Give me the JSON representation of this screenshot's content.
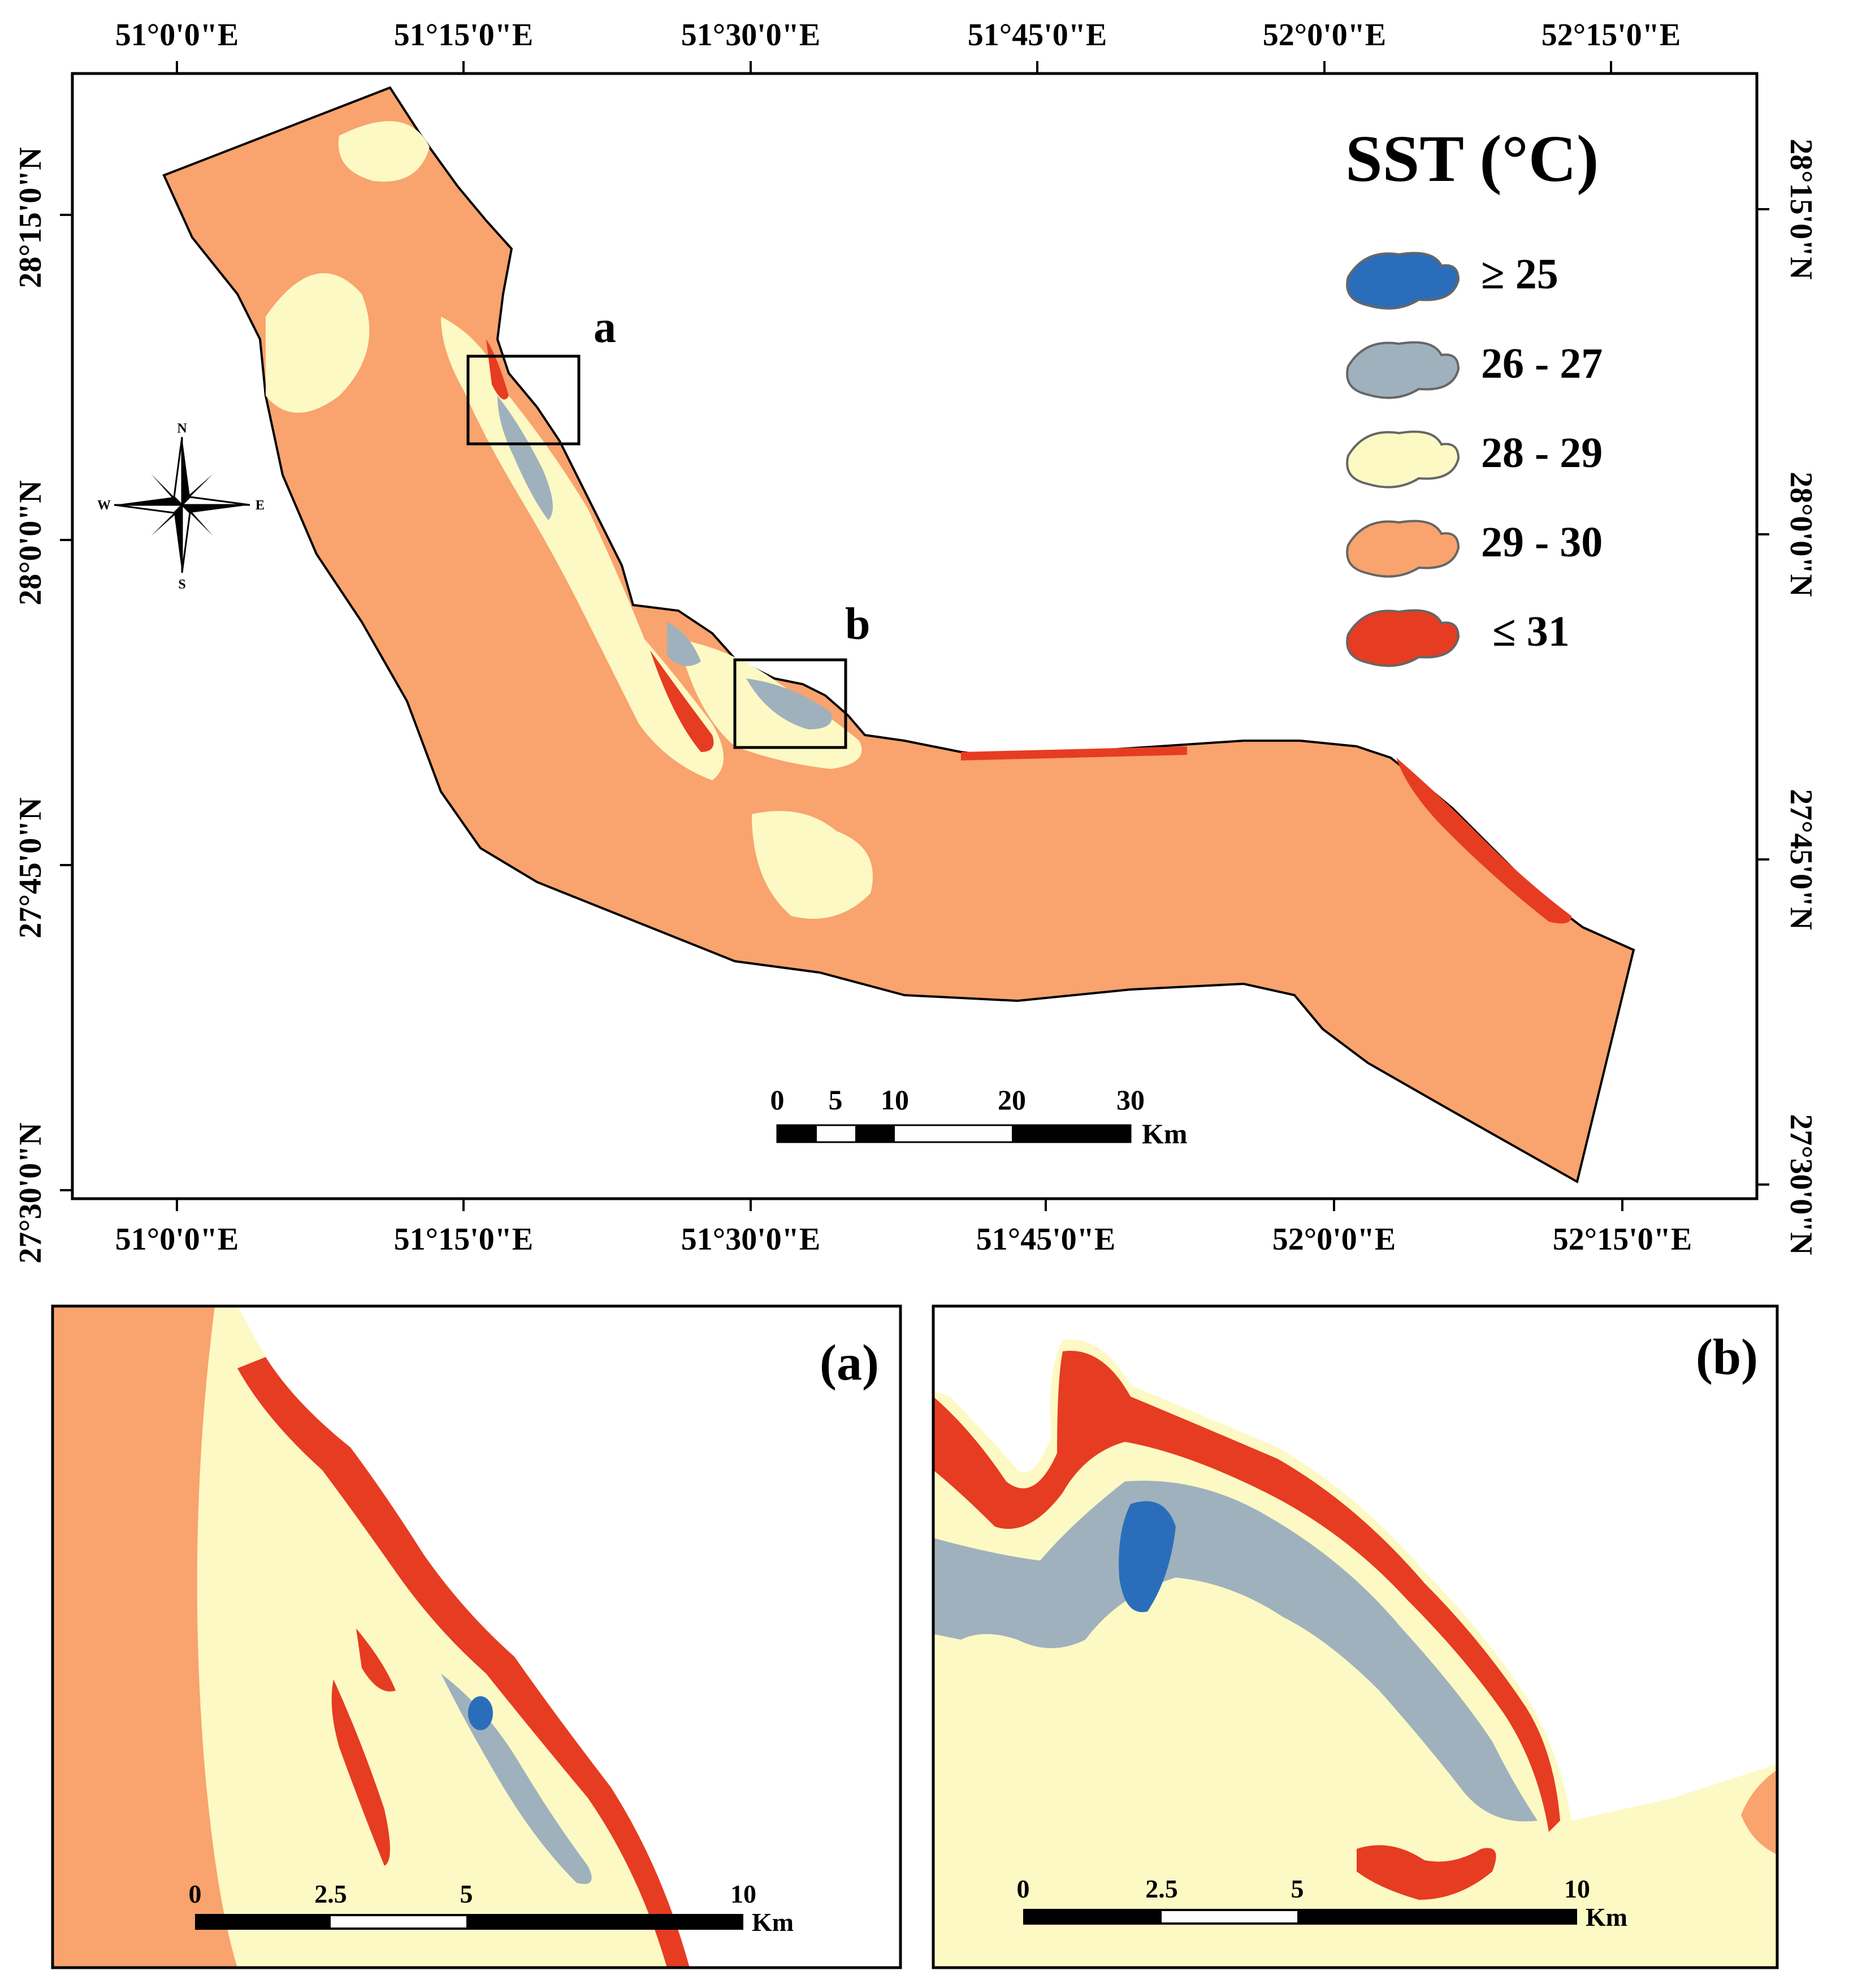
{
  "main_map": {
    "top_lon_labels": [
      "51°0'0\"E",
      "51°15'0\"E",
      "51°30'0\"E",
      "51°45'0\"E",
      "52°0'0\"E",
      "52°15'0\"E"
    ],
    "bottom_lon_labels": [
      "51°0'0\"E",
      "51°15'0\"E",
      "51°30'0\"E",
      "51°45'0\"E",
      "52°0'0\"E",
      "52°15'0\"E"
    ],
    "left_lat_labels": [
      "28°15'0\"N",
      "28°0'0\"N",
      "27°45'0\"N",
      "27°30'0\"N"
    ],
    "right_lat_labels": [
      "28°15'0\"N",
      "28°0'0\"N",
      "27°45'0\"N",
      "27°30'0\"N"
    ],
    "inset_markers": [
      "a",
      "b"
    ],
    "scale_bar": {
      "ticks": [
        "0",
        "5",
        "10",
        "20",
        "30"
      ],
      "unit": "Km"
    },
    "north_arrow": {
      "n": "N",
      "s": "S",
      "e": "E",
      "w": "W"
    }
  },
  "legend": {
    "title": "SST (°C)",
    "items": [
      {
        "label": "≥ 25",
        "color": "#2a6ebb"
      },
      {
        "label": "26 - 27",
        "color": "#9fb1bd"
      },
      {
        "label": "28 - 29",
        "color": "#fdf9c4"
      },
      {
        "label": "29 - 30",
        "color": "#f9a36e"
      },
      {
        "label": "≤ 31",
        "color": "#e63c22"
      }
    ]
  },
  "inset_a": {
    "label": "(a)",
    "scale_bar": {
      "ticks": [
        "0",
        "2.5",
        "5",
        "10"
      ],
      "unit": "Km"
    }
  },
  "inset_b": {
    "label": "(b)",
    "scale_bar": {
      "ticks": [
        "0",
        "2.5",
        "5",
        "10"
      ],
      "unit": "Km"
    }
  }
}
